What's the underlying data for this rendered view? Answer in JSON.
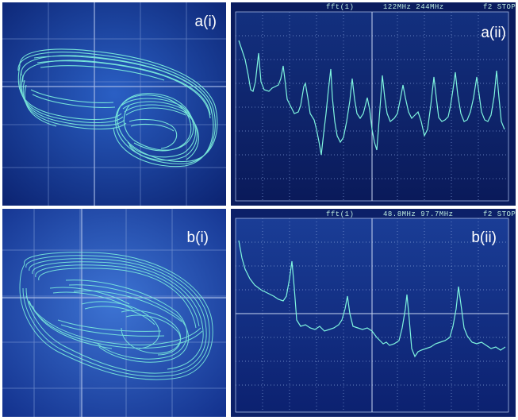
{
  "panels": {
    "a_i": {
      "label": "a(i)"
    },
    "a_ii": {
      "label": "a(ii)",
      "header_fn": "fft(1)",
      "header_freqs": "122MHz 244MHz",
      "header_right": "f2 STOP"
    },
    "b_i": {
      "label": "b(i)"
    },
    "b_ii": {
      "label": "b(ii)",
      "header_fn": "fft(1)",
      "header_freqs": "48.8MHz 97.7MHz",
      "header_right": "f2 STOP"
    }
  },
  "colors": {
    "trace": "#7ff5df",
    "scope_blue_light": "#1e4fb0",
    "scope_blue_dark": "#0a1f6b",
    "grid": "#6b86c4"
  }
}
